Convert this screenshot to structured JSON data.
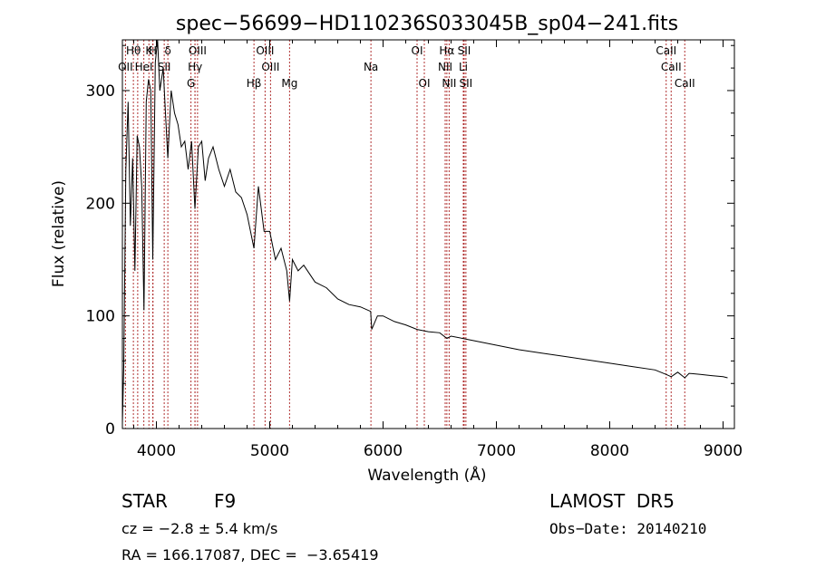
{
  "chart_data": {
    "type": "line",
    "title": "spec−56699−HD110236S033045B_sp04−241.fits",
    "xlabel": "Wavelength (Å)",
    "ylabel": "Flux (relative)",
    "xlim": [
      3700,
      9100
    ],
    "ylim": [
      0,
      345
    ],
    "x_ticks": [
      4000,
      5000,
      6000,
      7000,
      8000,
      9000
    ],
    "y_ticks": [
      0,
      100,
      200,
      300
    ],
    "grid": false,
    "legend": "none",
    "series": [
      {
        "x": [
          3700,
          3712,
          3730,
          3750,
          3770,
          3790,
          3810,
          3830,
          3850,
          3870,
          3890,
          3910,
          3930,
          3950,
          3968,
          3990,
          4010,
          4030,
          4060,
          4080,
          4101,
          4130,
          4160,
          4190,
          4220,
          4250,
          4280,
          4310,
          4340,
          4370,
          4400,
          4430,
          4460,
          4500,
          4550,
          4600,
          4650,
          4700,
          4750,
          4800,
          4861,
          4900,
          4950,
          5000,
          5050,
          5100,
          5150,
          5175,
          5200,
          5250,
          5300,
          5400,
          5500,
          5600,
          5700,
          5800,
          5890,
          5900,
          5950,
          6000,
          6100,
          6200,
          6300,
          6400,
          6500,
          6563,
          6600,
          6700,
          6800,
          6900,
          7000,
          7200,
          7400,
          7600,
          7800,
          8000,
          8200,
          8400,
          8498,
          8542,
          8600,
          8662,
          8700,
          8800,
          8900,
          9000,
          9040
        ],
        "y": [
          5,
          55,
          230,
          290,
          180,
          240,
          140,
          260,
          250,
          215,
          105,
          290,
          310,
          300,
          150,
          325,
          345,
          300,
          320,
          280,
          240,
          300,
          280,
          270,
          250,
          255,
          230,
          255,
          195,
          250,
          255,
          220,
          240,
          250,
          230,
          215,
          230,
          210,
          205,
          190,
          160,
          215,
          175,
          175,
          150,
          160,
          140,
          113,
          150,
          140,
          145,
          130,
          125,
          115,
          110,
          108,
          104,
          88,
          100,
          100,
          95,
          92,
          88,
          86,
          85,
          80,
          82,
          80,
          78,
          76,
          74,
          70,
          67,
          64,
          61,
          58,
          55,
          52,
          48,
          46,
          50,
          45,
          49,
          48,
          47,
          46,
          45
        ]
      }
    ],
    "lines": [
      {
        "label": "Hθ",
        "x": 3797,
        "row": 0
      },
      {
        "label": "K",
        "x": 3934,
        "row": 0
      },
      {
        "label": "H",
        "x": 3968,
        "row": 0
      },
      {
        "label": "δ",
        "x": 4101,
        "row": 0
      },
      {
        "label": "OII",
        "x": 3727,
        "row": 1
      },
      {
        "label": "HeI",
        "x": 3889,
        "row": 1
      },
      {
        "label": "SII",
        "x": 4069,
        "row": 1
      },
      {
        "label": "OIII",
        "x": 4363,
        "row": 0
      },
      {
        "label": "Hγ",
        "x": 4341,
        "row": 1
      },
      {
        "label": "G",
        "x": 4305,
        "row": 2
      },
      {
        "label": "OIII",
        "x": 4959,
        "row": 0
      },
      {
        "label": "OIII",
        "x": 5007,
        "row": 1
      },
      {
        "label": "Hβ",
        "x": 4861,
        "row": 2
      },
      {
        "label": "Mg",
        "x": 5175,
        "row": 2
      },
      {
        "label": "Na",
        "x": 5893,
        "row": 1
      },
      {
        "label": "OI",
        "x": 6300,
        "row": 0
      },
      {
        "label": "OI",
        "x": 6364,
        "row": 2
      },
      {
        "label": "Hα",
        "x": 6563,
        "row": 0
      },
      {
        "label": "SII",
        "x": 6716,
        "row": 0
      },
      {
        "label": "NII",
        "x": 6548,
        "row": 1
      },
      {
        "label": "Li",
        "x": 6708,
        "row": 1
      },
      {
        "label": "NII",
        "x": 6583,
        "row": 2
      },
      {
        "label": "SII",
        "x": 6731,
        "row": 2
      },
      {
        "label": "CaII",
        "x": 8498,
        "row": 0
      },
      {
        "label": "CaII",
        "x": 8542,
        "row": 1
      },
      {
        "label": "CaII",
        "x": 8662,
        "row": 2
      },
      {
        "label": "",
        "x": 3835,
        "row": -1
      },
      {
        "label": "",
        "x": 3970,
        "row": -1
      },
      {
        "label": "",
        "x": 4340,
        "row": -1
      }
    ]
  },
  "footer": {
    "object_type": "STAR",
    "subclass": "F9",
    "survey": "LAMOST  DR5",
    "redshift": "cz = −2.8 ± 5.4 km/s",
    "obs_date": "Obs−Date: 20140210",
    "coords": "RA = 166.17087, DEC =  −3.65419"
  },
  "colors": {
    "spectrum": "#000000",
    "line_marker": "#b03030",
    "axis": "#000000",
    "background": "#ffffff"
  }
}
